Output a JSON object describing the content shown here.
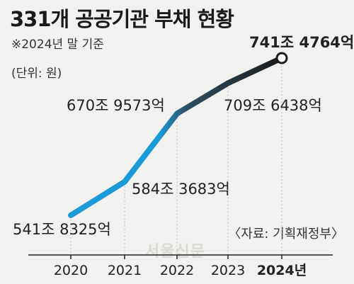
{
  "chart_data": {
    "type": "line",
    "title": "331개 공공기관 부채 현황",
    "subtitle": "※2024년 말 기준",
    "unit": "(단위: 원)",
    "source": "〈자료: 기획재정부〉",
    "categories": [
      "2020",
      "2021",
      "2022",
      "2023",
      "2024년"
    ],
    "values": [
      541.8325,
      584.3683,
      670.9573,
      709.6438,
      741.4764
    ],
    "data_labels": [
      "541조 8325억",
      "584조 3683억",
      "670조 9573억",
      "709조 6438억",
      "741조 4764억"
    ],
    "ylim": [
      520,
      760
    ],
    "grid": false,
    "colors": {
      "start": "#1a9ad6",
      "mid": "#2f4f62",
      "end": "#1a1a1a"
    }
  },
  "watermark": "서울신문"
}
